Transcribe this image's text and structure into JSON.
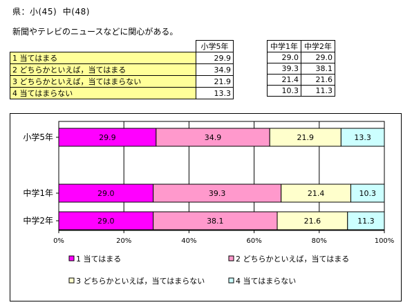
{
  "header": {
    "text": "県：小(45)  中(48)"
  },
  "question": "新聞やテレビのニュースなどに関心がある。",
  "table": {
    "categories": [
      "1  当てはまる",
      "2  どちらかといえば，当てはまる",
      "3  どちらかといえば，当てはまらない",
      "4  当てはまらない"
    ],
    "left_group": {
      "header": "小学5年",
      "values": [
        "29.9",
        "34.9",
        "21.9",
        "13.3"
      ]
    },
    "right_group": {
      "headers": [
        "中学1年",
        "中学2年"
      ],
      "values": [
        [
          "29.0",
          "29.0"
        ],
        [
          "39.3",
          "38.1"
        ],
        [
          "21.4",
          "21.6"
        ],
        [
          "10.3",
          "11.3"
        ]
      ]
    }
  },
  "chart_data": {
    "type": "bar",
    "orientation": "horizontal",
    "stacked": true,
    "percent": true,
    "categories": [
      "小学5年",
      "中学1年",
      "中学2年"
    ],
    "series": [
      {
        "name": "1  当てはまる",
        "legend_label": "■1  当てはまる",
        "color": "#ff00ff",
        "values": [
          29.9,
          29.0,
          29.0
        ]
      },
      {
        "name": "2  どちらかといえば，当てはまる",
        "legend_label": "■2  どちらかといえば，当てはまる",
        "color": "#ff99cc",
        "values": [
          34.9,
          39.3,
          38.1
        ]
      },
      {
        "name": "3  どちらかといえば，当てはまらない",
        "legend_label": "□3  どちらかといえば，当てはまらない",
        "color": "#ffffcc",
        "values": [
          21.9,
          21.4,
          21.6
        ]
      },
      {
        "name": "4  当てはまらない",
        "legend_label": "□4  当てはまらない",
        "color": "#ccffff",
        "values": [
          13.3,
          10.3,
          11.3
        ]
      }
    ],
    "xlim": [
      0,
      100
    ],
    "xticks": [
      "0%",
      "20%",
      "40%",
      "60%",
      "80%",
      "100%"
    ],
    "grid": true,
    "legend_position": "bottom"
  }
}
